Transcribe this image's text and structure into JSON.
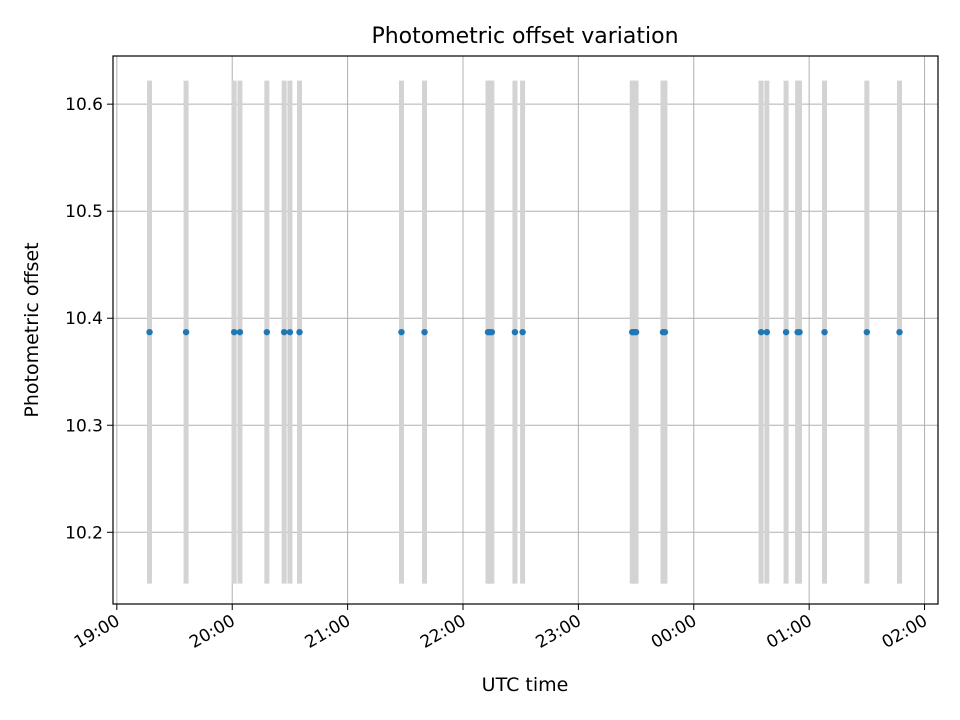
{
  "chart_data": {
    "type": "scatter",
    "title": "Photometric offset variation",
    "xlabel": "UTC time",
    "ylabel": "Photometric offset",
    "x_axis": "time",
    "xlim": [
      "18:58",
      "02:07"
    ],
    "ylim": [
      10.133,
      10.645
    ],
    "x_ticks": [
      "19:00",
      "20:00",
      "21:00",
      "22:00",
      "23:00",
      "00:00",
      "01:00",
      "02:00"
    ],
    "y_ticks": [
      10.2,
      10.3,
      10.4,
      10.5,
      10.6
    ],
    "grid": true,
    "point_color": "#1f77b4",
    "errorbar_color": "#d3d3d3",
    "points": [
      {
        "time": "19:17",
        "offset": 10.387,
        "err_low": 10.152,
        "err_high": 10.622
      },
      {
        "time": "19:36",
        "offset": 10.387,
        "err_low": 10.152,
        "err_high": 10.622
      },
      {
        "time": "20:01",
        "offset": 10.387,
        "err_low": 10.152,
        "err_high": 10.622
      },
      {
        "time": "20:04",
        "offset": 10.387,
        "err_low": 10.152,
        "err_high": 10.622
      },
      {
        "time": "20:18",
        "offset": 10.387,
        "err_low": 10.152,
        "err_high": 10.622
      },
      {
        "time": "20:27",
        "offset": 10.387,
        "err_low": 10.152,
        "err_high": 10.622
      },
      {
        "time": "20:30",
        "offset": 10.387,
        "err_low": 10.152,
        "err_high": 10.622
      },
      {
        "time": "20:35",
        "offset": 10.387,
        "err_low": 10.152,
        "err_high": 10.622
      },
      {
        "time": "21:28",
        "offset": 10.387,
        "err_low": 10.152,
        "err_high": 10.622
      },
      {
        "time": "21:40",
        "offset": 10.387,
        "err_low": 10.152,
        "err_high": 10.622
      },
      {
        "time": "22:13",
        "offset": 10.387,
        "err_low": 10.152,
        "err_high": 10.622
      },
      {
        "time": "22:14",
        "offset": 10.387,
        "err_low": 10.152,
        "err_high": 10.622
      },
      {
        "time": "22:15",
        "offset": 10.387,
        "err_low": 10.152,
        "err_high": 10.622
      },
      {
        "time": "22:27",
        "offset": 10.387,
        "err_low": 10.152,
        "err_high": 10.622
      },
      {
        "time": "22:31",
        "offset": 10.387,
        "err_low": 10.152,
        "err_high": 10.622
      },
      {
        "time": "23:28",
        "offset": 10.387,
        "err_low": 10.152,
        "err_high": 10.622
      },
      {
        "time": "23:29",
        "offset": 10.387,
        "err_low": 10.152,
        "err_high": 10.622
      },
      {
        "time": "23:30",
        "offset": 10.387,
        "err_low": 10.152,
        "err_high": 10.622
      },
      {
        "time": "23:44",
        "offset": 10.387,
        "err_low": 10.152,
        "err_high": 10.622
      },
      {
        "time": "23:45",
        "offset": 10.387,
        "err_low": 10.152,
        "err_high": 10.622
      },
      {
        "time": "00:35",
        "offset": 10.387,
        "err_low": 10.152,
        "err_high": 10.622
      },
      {
        "time": "00:38",
        "offset": 10.387,
        "err_low": 10.152,
        "err_high": 10.622
      },
      {
        "time": "00:48",
        "offset": 10.387,
        "err_low": 10.152,
        "err_high": 10.622
      },
      {
        "time": "00:54",
        "offset": 10.387,
        "err_low": 10.152,
        "err_high": 10.622
      },
      {
        "time": "00:55",
        "offset": 10.387,
        "err_low": 10.152,
        "err_high": 10.622
      },
      {
        "time": "01:08",
        "offset": 10.387,
        "err_low": 10.152,
        "err_high": 10.622
      },
      {
        "time": "01:30",
        "offset": 10.387,
        "err_low": 10.152,
        "err_high": 10.622
      },
      {
        "time": "01:47",
        "offset": 10.387,
        "err_low": 10.152,
        "err_high": 10.622
      }
    ]
  }
}
